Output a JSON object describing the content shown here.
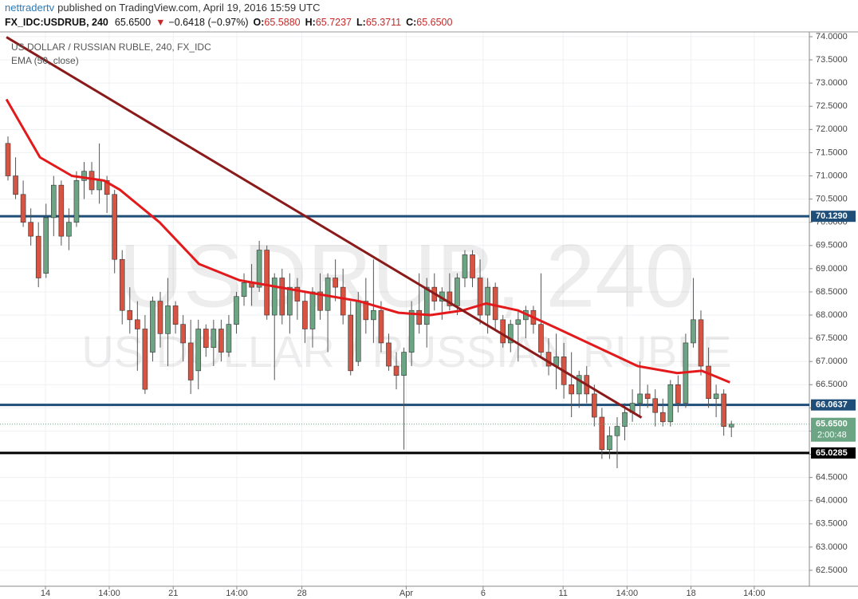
{
  "header": {
    "author": "nettradertv",
    "published": "published on TradingView.com, April 19, 2016 15:59 UTC"
  },
  "chart_data": {
    "type": "candlestick",
    "symbol": "FX_IDC:USDRUB, 240",
    "last": "65.6500",
    "arrow": "▼",
    "change": "−0.6418 (−0.97%)",
    "ohlc_text": [
      {
        "key": "O:",
        "value": "65.5880"
      },
      {
        "key": "H:",
        "value": "65.7237"
      },
      {
        "key": "L:",
        "value": "65.3711"
      },
      {
        "key": "C:",
        "value": "65.6500"
      }
    ],
    "title": "US DOLLAR / RUSSIAN RUBLE, 240, FX_IDC",
    "indicator": "EMA (50, close)",
    "watermark": "USDRUB, 240",
    "watermark_sub": "US DOLLAR / RUSSIAN RUBLE",
    "up_color": "#6ba583",
    "down_color": "#d75442",
    "ohlc": [
      [
        71.7,
        71.85,
        70.9,
        71.0
      ],
      [
        71.0,
        71.4,
        70.5,
        70.6
      ],
      [
        70.6,
        70.9,
        69.9,
        70.0
      ],
      [
        70.0,
        70.3,
        69.5,
        69.7
      ],
      [
        69.7,
        70.0,
        68.6,
        68.8
      ],
      [
        68.9,
        70.4,
        68.8,
        70.1
      ],
      [
        70.1,
        71.0,
        69.7,
        70.8
      ],
      [
        70.8,
        70.9,
        69.5,
        69.7
      ],
      [
        69.7,
        70.3,
        69.4,
        70.0
      ],
      [
        70.0,
        71.1,
        69.9,
        70.9
      ],
      [
        70.9,
        71.3,
        70.5,
        71.1
      ],
      [
        71.1,
        71.3,
        70.6,
        70.7
      ],
      [
        70.7,
        71.7,
        70.4,
        70.9
      ],
      [
        70.9,
        71.0,
        70.2,
        70.6
      ],
      [
        70.6,
        70.7,
        68.9,
        69.2
      ],
      [
        69.2,
        69.4,
        67.8,
        68.1
      ],
      [
        68.1,
        68.6,
        67.6,
        67.9
      ],
      [
        67.9,
        68.3,
        66.8,
        67.7
      ],
      [
        67.7,
        68.0,
        66.3,
        66.4
      ],
      [
        67.2,
        68.4,
        67.0,
        68.3
      ],
      [
        68.3,
        68.5,
        67.3,
        67.6
      ],
      [
        67.6,
        68.8,
        66.9,
        68.2
      ],
      [
        68.2,
        68.3,
        67.6,
        67.8
      ],
      [
        67.8,
        68.0,
        67.0,
        67.4
      ],
      [
        67.4,
        67.9,
        66.3,
        66.6
      ],
      [
        66.8,
        67.9,
        66.4,
        67.7
      ],
      [
        67.7,
        67.8,
        67.1,
        67.3
      ],
      [
        67.3,
        67.9,
        66.9,
        67.7
      ],
      [
        67.7,
        67.9,
        67.0,
        67.2
      ],
      [
        67.2,
        68.0,
        67.1,
        67.8
      ],
      [
        67.8,
        68.5,
        67.6,
        68.4
      ],
      [
        68.4,
        68.9,
        68.2,
        68.7
      ],
      [
        68.7,
        69.1,
        68.2,
        68.6
      ],
      [
        68.6,
        69.6,
        68.5,
        69.4
      ],
      [
        69.4,
        69.5,
        67.9,
        68.0
      ],
      [
        68.0,
        68.9,
        66.6,
        68.8
      ],
      [
        68.8,
        69.0,
        67.8,
        68.0
      ],
      [
        68.0,
        68.9,
        67.6,
        68.6
      ],
      [
        68.6,
        68.8,
        67.9,
        68.3
      ],
      [
        68.3,
        68.5,
        67.4,
        67.7
      ],
      [
        67.7,
        68.6,
        67.3,
        68.5
      ],
      [
        68.5,
        68.9,
        67.9,
        68.1
      ],
      [
        68.1,
        68.9,
        67.2,
        68.8
      ],
      [
        68.8,
        69.2,
        68.3,
        68.6
      ],
      [
        68.6,
        69.0,
        67.8,
        68.0
      ],
      [
        68.0,
        68.3,
        66.7,
        66.8
      ],
      [
        67.0,
        68.5,
        66.9,
        68.3
      ],
      [
        68.3,
        68.8,
        67.6,
        67.9
      ],
      [
        67.9,
        69.2,
        67.4,
        68.1
      ],
      [
        68.1,
        68.3,
        67.2,
        67.4
      ],
      [
        67.4,
        67.6,
        66.8,
        66.9
      ],
      [
        66.9,
        67.2,
        66.4,
        66.7
      ],
      [
        66.7,
        67.3,
        65.1,
        67.2
      ],
      [
        67.2,
        68.3,
        66.9,
        68.1
      ],
      [
        68.1,
        68.9,
        67.6,
        67.8
      ],
      [
        67.8,
        68.8,
        67.3,
        68.6
      ],
      [
        68.6,
        68.9,
        68.1,
        68.3
      ],
      [
        68.3,
        68.6,
        67.9,
        68.5
      ],
      [
        68.5,
        68.9,
        68.1,
        68.2
      ],
      [
        68.2,
        68.9,
        68.0,
        68.8
      ],
      [
        68.8,
        69.4,
        68.6,
        69.3
      ],
      [
        69.3,
        69.4,
        68.6,
        68.8
      ],
      [
        68.8,
        69.2,
        67.8,
        68.0
      ],
      [
        68.0,
        68.8,
        67.6,
        68.6
      ],
      [
        68.6,
        68.7,
        67.7,
        67.9
      ],
      [
        67.9,
        68.0,
        67.3,
        67.4
      ],
      [
        67.4,
        67.9,
        67.2,
        67.8
      ],
      [
        67.8,
        68.1,
        67.0,
        67.9
      ],
      [
        67.9,
        68.2,
        67.5,
        68.1
      ],
      [
        68.1,
        68.2,
        67.6,
        67.8
      ],
      [
        67.8,
        68.9,
        67.1,
        67.2
      ],
      [
        67.2,
        67.5,
        66.7,
        66.9
      ],
      [
        66.9,
        67.6,
        66.4,
        67.1
      ],
      [
        67.1,
        67.4,
        66.2,
        66.5
      ],
      [
        66.5,
        67.2,
        65.8,
        66.3
      ],
      [
        66.3,
        66.8,
        66.0,
        66.7
      ],
      [
        66.7,
        66.9,
        66.1,
        66.3
      ],
      [
        66.3,
        66.5,
        65.6,
        65.8
      ],
      [
        65.8,
        66.0,
        64.9,
        65.1
      ],
      [
        65.1,
        65.6,
        64.9,
        65.4
      ],
      [
        65.4,
        65.8,
        64.7,
        65.6
      ],
      [
        65.6,
        66.1,
        65.3,
        65.9
      ],
      [
        65.9,
        66.4,
        65.7,
        66.1
      ],
      [
        66.1,
        67.0,
        65.8,
        66.3
      ],
      [
        66.3,
        66.5,
        66.0,
        66.2
      ],
      [
        66.2,
        66.4,
        65.6,
        65.9
      ],
      [
        65.9,
        66.2,
        65.6,
        65.7
      ],
      [
        65.7,
        66.6,
        65.6,
        66.5
      ],
      [
        66.5,
        66.7,
        65.9,
        66.1
      ],
      [
        66.1,
        67.6,
        66.0,
        67.4
      ],
      [
        67.4,
        68.8,
        67.3,
        67.9
      ],
      [
        67.9,
        68.1,
        66.7,
        66.9
      ],
      [
        66.9,
        67.3,
        66.0,
        66.2
      ],
      [
        66.2,
        66.5,
        65.8,
        66.3
      ],
      [
        66.3,
        66.4,
        65.4,
        65.6
      ],
      [
        65.588,
        65.7237,
        65.3711,
        65.65
      ]
    ],
    "ema": {
      "color": "#e31a1c",
      "x": [
        -0.2,
        4.2,
        8.4,
        12.6,
        14.7,
        19.9,
        25.1,
        30.4,
        35.6,
        40.8,
        46.1,
        51.3,
        55.5,
        59.7,
        62.8,
        67.0,
        72.3,
        77.5,
        82.7,
        87.9,
        91.1,
        94.8
      ],
      "values": [
        72.65,
        71.4,
        71.0,
        70.9,
        70.7,
        70.0,
        69.1,
        68.75,
        68.6,
        68.45,
        68.3,
        68.05,
        68.0,
        68.1,
        68.25,
        68.1,
        67.7,
        67.3,
        66.9,
        66.75,
        66.8,
        66.55
      ]
    },
    "trendline": {
      "color": "#8b1a1a",
      "x": [
        -0.2,
        83.2
      ],
      "values": [
        73.99,
        65.79
      ]
    },
    "levels": [
      {
        "value": 70.129,
        "label": "70.1290",
        "color": "#1f4e79"
      },
      {
        "value": 66.0637,
        "label": "66.0637",
        "color": "#1f4e79"
      },
      {
        "value": 65.0285,
        "label": "65.0285",
        "color": "#000000"
      }
    ],
    "current": {
      "value": 65.65,
      "label": "65.6500",
      "timer": "2:00:48",
      "color": "#6ba583"
    },
    "ylim": [
      62.156,
      74.103
    ],
    "yticks": [
      {
        "value": 62.5,
        "label": "62.5000"
      },
      {
        "value": 63,
        "label": "63.0000"
      },
      {
        "value": 63.5,
        "label": "63.5000"
      },
      {
        "value": 64,
        "label": "64.0000"
      },
      {
        "value": 64.5,
        "label": "64.5000"
      },
      {
        "value": 65,
        "label": "65.0000"
      },
      {
        "value": 65.5,
        "label": "65.5000"
      },
      {
        "value": 66,
        "label": "66.0000"
      },
      {
        "value": 66.5,
        "label": "66.5000"
      },
      {
        "value": 67,
        "label": "67.0000"
      },
      {
        "value": 67.5,
        "label": "67.5000"
      },
      {
        "value": 68,
        "label": "68.0000"
      },
      {
        "value": 68.5,
        "label": "68.5000"
      },
      {
        "value": 69,
        "label": "69.0000"
      },
      {
        "value": 69.5,
        "label": "69.5000"
      },
      {
        "value": 70,
        "label": "70.0000"
      },
      {
        "value": 70.5,
        "label": "70.5000"
      },
      {
        "value": 71,
        "label": "71.0000"
      },
      {
        "value": 71.5,
        "label": "71.5000"
      },
      {
        "value": 72,
        "label": "72.0000"
      },
      {
        "value": 72.5,
        "label": "72.5000"
      },
      {
        "value": 73,
        "label": "73.0000"
      },
      {
        "value": 73.5,
        "label": "73.5000"
      },
      {
        "value": 74,
        "label": "74.0000"
      }
    ],
    "xlim": [
      -1.047,
      105.24
    ],
    "xticks": [
      {
        "value": 4.92,
        "label": "14"
      },
      {
        "value": 13.3,
        "label": "14:00"
      },
      {
        "value": 21.7,
        "label": "21"
      },
      {
        "value": 30.05,
        "label": "14:00"
      },
      {
        "value": 38.6,
        "label": "28"
      },
      {
        "value": 52.3,
        "label": "Apr"
      },
      {
        "value": 62.4,
        "label": "6"
      },
      {
        "value": 72.9,
        "label": "11"
      },
      {
        "value": 81.3,
        "label": "14:00"
      },
      {
        "value": 89.7,
        "label": "18"
      },
      {
        "value": 98.0,
        "label": "14:00"
      }
    ],
    "grid": true
  }
}
